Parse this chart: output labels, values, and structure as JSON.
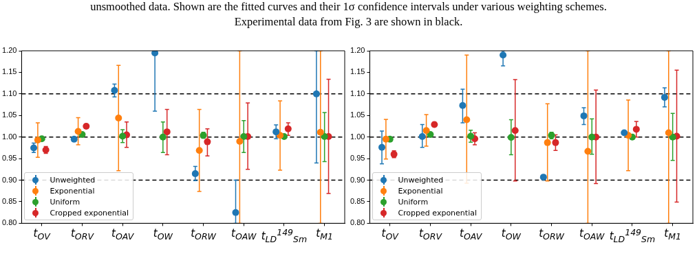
{
  "chart_data": [
    {
      "type": "scatter",
      "annotations": [
        "unsmoothed data. Shown are the fitted curves and their 1σ confidence intervals under various weighting schemes.",
        "Experimental data from Fig. 3 are shown in black."
      ],
      "categories": [
        "t$_{OV}$",
        "t$_{ORV}$",
        "t$_{OAV}$",
        "t$_{OW}$",
        "t$_{ORW}$",
        "t$_{OAW}$",
        "t$_{LD}$$^{149}$$_{Sm}$",
        "t$_{M1}$"
      ],
      "ylim": [
        0.8,
        1.2
      ],
      "yticks": [
        {
          "value": 0.8,
          "label": "0.80"
        },
        {
          "value": 0.85,
          "label": "0.85"
        },
        {
          "value": 0.9,
          "label": "0.90"
        },
        {
          "value": 0.95,
          "label": "0.95"
        },
        {
          "value": 1.0,
          "label": "1.00"
        },
        {
          "value": 1.05,
          "label": "1.05"
        },
        {
          "value": 1.1,
          "label": "1.10"
        },
        {
          "value": 1.15,
          "label": "1.15"
        },
        {
          "value": 1.2,
          "label": "1.20"
        }
      ],
      "ref_lines": [
        {
          "axis": "y",
          "value": 0.9,
          "color": "#000000",
          "line_style": "dashed"
        },
        {
          "axis": "y",
          "value": 1.0,
          "color": "#000000",
          "line_style": "dashed"
        },
        {
          "axis": "y",
          "value": 1.1,
          "color": "#000000",
          "line_style": "dashed"
        }
      ],
      "grid": false,
      "legend": "bottom left",
      "marker": "circle",
      "series": [
        {
          "name": "Unweighted",
          "color": "#1f77b4",
          "values": [
            0.975,
            0.995,
            1.108,
            1.195,
            0.915,
            0.825,
            1.012,
            1.1
          ],
          "errors": [
            [
              0.964,
              0.986
            ],
            [
              0.99,
              1.0
            ],
            [
              1.093,
              1.123
            ],
            [
              1.06,
              1.2
            ],
            [
              0.899,
              0.932
            ],
            [
              0.8,
              0.9
            ],
            [
              0.996,
              1.028
            ],
            [
              0.94,
              1.2
            ]
          ]
        },
        {
          "name": "Exponential",
          "color": "#ff7f0e",
          "values": [
            0.993,
            1.013,
            1.044,
            null,
            0.969,
            0.99,
            1.004,
            1.011
          ],
          "errors": [
            [
              0.953,
              1.033
            ],
            [
              0.982,
              1.045
            ],
            [
              0.922,
              1.166
            ],
            null,
            [
              0.874,
              1.064
            ],
            [
              0.8,
              1.2
            ],
            [
              0.923,
              1.084
            ],
            [
              0.8,
              1.2
            ]
          ]
        },
        {
          "name": "Uniform",
          "color": "#2ca02c",
          "values": [
            0.996,
            1.006,
            1.002,
            1.0,
            1.004,
            1.001,
            1.001,
            1.001
          ],
          "errors": [
            null,
            null,
            [
              0.987,
              1.017
            ],
            [
              0.964,
              1.035
            ],
            [
              0.997,
              1.011
            ],
            [
              0.964,
              1.038
            ],
            null,
            [
              0.943,
              1.057
            ]
          ]
        },
        {
          "name": "Cropped exponential",
          "color": "#d62728",
          "values": [
            0.97,
            1.025,
            1.005,
            1.012,
            0.989,
            1.001,
            1.019,
            1.001
          ],
          "errors": [
            [
              0.962,
              0.978
            ],
            [
              1.02,
              1.03
            ],
            [
              0.976,
              1.035
            ],
            [
              0.959,
              1.064
            ],
            [
              0.956,
              1.019
            ],
            [
              0.925,
              1.079
            ],
            [
              1.004,
              1.033
            ],
            [
              0.869,
              1.134
            ]
          ]
        }
      ]
    },
    {
      "type": "scatter",
      "categories": [
        "t$_{OV}$",
        "t$_{ORV}$",
        "t$_{OAV}$",
        "t$_{OW}$",
        "t$_{ORW}$",
        "t$_{OAW}$",
        "t$_{LD}$$^{149}$$_{Sm}$",
        "t$_{M1}$"
      ],
      "ylim": [
        0.8,
        1.2
      ],
      "yticks": [
        {
          "value": 0.8,
          "label": "0.80"
        },
        {
          "value": 0.85,
          "label": "0.85"
        },
        {
          "value": 0.9,
          "label": "0.90"
        },
        {
          "value": 0.95,
          "label": "0.95"
        },
        {
          "value": 1.0,
          "label": "1.00"
        },
        {
          "value": 1.05,
          "label": "1.05"
        },
        {
          "value": 1.1,
          "label": "1.10"
        },
        {
          "value": 1.15,
          "label": "1.15"
        },
        {
          "value": 1.2,
          "label": "1.20"
        }
      ],
      "ref_lines": [
        {
          "axis": "y",
          "value": 0.9,
          "color": "#000000",
          "line_style": "dashed"
        },
        {
          "axis": "y",
          "value": 1.0,
          "color": "#000000",
          "line_style": "dashed"
        },
        {
          "axis": "y",
          "value": 1.1,
          "color": "#000000",
          "line_style": "dashed"
        }
      ],
      "grid": false,
      "legend": "bottom left",
      "marker": "circle",
      "series": [
        {
          "name": "Unweighted",
          "color": "#1f77b4",
          "values": [
            0.976,
            1.001,
            1.073,
            1.19,
            0.907,
            1.049,
            1.01,
            1.092
          ],
          "errors": [
            [
              0.938,
              1.014
            ],
            [
              0.976,
              1.029
            ],
            [
              1.033,
              1.111
            ],
            [
              1.165,
              1.2
            ],
            null,
            [
              1.029,
              1.068
            ],
            null,
            [
              1.07,
              1.114
            ]
          ]
        },
        {
          "name": "Exponential",
          "color": "#ff7f0e",
          "values": [
            0.995,
            1.015,
            1.04,
            null,
            0.987,
            0.967,
            1.004,
            1.01
          ],
          "errors": [
            [
              0.949,
              1.041
            ],
            [
              0.979,
              1.052
            ],
            [
              0.893,
              1.19
            ],
            null,
            [
              0.898,
              1.077
            ],
            [
              0.8,
              1.2
            ],
            [
              0.922,
              1.086
            ],
            [
              0.8,
              1.2
            ]
          ]
        },
        {
          "name": "Uniform",
          "color": "#2ca02c",
          "values": [
            0.995,
            1.006,
            1.002,
            0.999,
            1.004,
            1.0,
            1.0,
            1.0
          ],
          "errors": [
            null,
            null,
            [
              0.988,
              1.016
            ],
            [
              0.959,
              1.04
            ],
            [
              0.996,
              1.011
            ],
            [
              0.96,
              1.042
            ],
            null,
            [
              0.946,
              1.055
            ]
          ]
        },
        {
          "name": "Cropped exponential",
          "color": "#d62728",
          "values": [
            0.96,
            1.029,
            0.996,
            1.015,
            0.987,
            1.0,
            1.018,
            1.002
          ],
          "errors": [
            [
              0.952,
              0.968
            ],
            [
              1.024,
              1.034
            ],
            [
              0.982,
              1.01
            ],
            [
              0.898,
              1.133
            ],
            [
              0.969,
              1.005
            ],
            [
              0.892,
              1.109
            ],
            [
              1.0,
              1.036
            ],
            [
              0.849,
              1.155
            ]
          ]
        }
      ]
    }
  ]
}
